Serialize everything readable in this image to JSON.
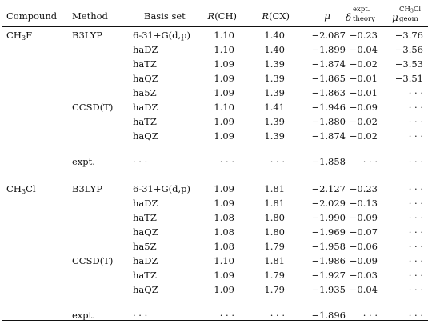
{
  "table": {
    "headers": {
      "compound": "Compound",
      "method": "Method",
      "basis": "Basis set",
      "rch_letter": "R",
      "rch_label": "(CH)",
      "rcx_letter": "R",
      "rcx_label": "(CX)",
      "mu_symbol": "μ",
      "delta_symbol": "δ",
      "delta_sup": "expt.",
      "delta_sub": "theory",
      "mugeom_symbol": "μ",
      "mugeom_sup": "CH3Cl",
      "mugeom_sub": "geom"
    },
    "rows": [
      {
        "compound": "CH3F",
        "method": "B3LYP",
        "basis": "6-31+G(d,p)",
        "rch": "1.10",
        "rcx": "1.40",
        "mu": "−2.087",
        "delta": "−0.23",
        "geom": "−3.76"
      },
      {
        "compound": "",
        "method": "",
        "basis": "haDZ",
        "rch": "1.10",
        "rcx": "1.40",
        "mu": "−1.899",
        "delta": "−0.04",
        "geom": "−3.56"
      },
      {
        "compound": "",
        "method": "",
        "basis": "haTZ",
        "rch": "1.09",
        "rcx": "1.39",
        "mu": "−1.874",
        "delta": "−0.02",
        "geom": "−3.53"
      },
      {
        "compound": "",
        "method": "",
        "basis": "haQZ",
        "rch": "1.09",
        "rcx": "1.39",
        "mu": "−1.865",
        "delta": "−0.01",
        "geom": "−3.51"
      },
      {
        "compound": "",
        "method": "",
        "basis": "ha5Z",
        "rch": "1.09",
        "rcx": "1.39",
        "mu": "−1.863",
        "delta": "−0.01",
        "geom": "· · ·"
      },
      {
        "compound": "",
        "method": "CCSD(T)",
        "basis": "haDZ",
        "rch": "1.10",
        "rcx": "1.41",
        "mu": "−1.946",
        "delta": "−0.09",
        "geom": "· · ·"
      },
      {
        "compound": "",
        "method": "",
        "basis": "haTZ",
        "rch": "1.09",
        "rcx": "1.39",
        "mu": "−1.880",
        "delta": "−0.02",
        "geom": "· · ·"
      },
      {
        "compound": "",
        "method": "",
        "basis": "haQZ",
        "rch": "1.09",
        "rcx": "1.39",
        "mu": "−1.874",
        "delta": "−0.02",
        "geom": "· · ·"
      },
      {
        "compound": "",
        "method": "expt.",
        "basis": "· · ·",
        "rch": "· · ·",
        "rcx": "· · ·",
        "mu": "−1.858",
        "delta": "· · ·",
        "geom": "· · ·"
      },
      {
        "compound": "CH3Cl",
        "method": "B3LYP",
        "basis": "6-31+G(d,p)",
        "rch": "1.09",
        "rcx": "1.81",
        "mu": "−2.127",
        "delta": "−0.23",
        "geom": "· · ·"
      },
      {
        "compound": "",
        "method": "",
        "basis": "haDZ",
        "rch": "1.09",
        "rcx": "1.81",
        "mu": "−2.029",
        "delta": "−0.13",
        "geom": "· · ·"
      },
      {
        "compound": "",
        "method": "",
        "basis": "haTZ",
        "rch": "1.08",
        "rcx": "1.80",
        "mu": "−1.990",
        "delta": "−0.09",
        "geom": "· · ·"
      },
      {
        "compound": "",
        "method": "",
        "basis": "haQZ",
        "rch": "1.08",
        "rcx": "1.80",
        "mu": "−1.969",
        "delta": "−0.07",
        "geom": "· · ·"
      },
      {
        "compound": "",
        "method": "",
        "basis": "ha5Z",
        "rch": "1.08",
        "rcx": "1.79",
        "mu": "−1.958",
        "delta": "−0.06",
        "geom": "· · ·"
      },
      {
        "compound": "",
        "method": "CCSD(T)",
        "basis": "haDZ",
        "rch": "1.10",
        "rcx": "1.81",
        "mu": "−1.986",
        "delta": "−0.09",
        "geom": "· · ·"
      },
      {
        "compound": "",
        "method": "",
        "basis": "haTZ",
        "rch": "1.09",
        "rcx": "1.79",
        "mu": "−1.927",
        "delta": "−0.03",
        "geom": "· · ·"
      },
      {
        "compound": "",
        "method": "",
        "basis": "haQZ",
        "rch": "1.09",
        "rcx": "1.79",
        "mu": "−1.935",
        "delta": "−0.04",
        "geom": "· · ·"
      },
      {
        "compound": "",
        "method": "expt.",
        "basis": "· · ·",
        "rch": "· · ·",
        "rcx": "· · ·",
        "mu": "−1.896",
        "delta": "· · ·",
        "geom": "· · ·"
      }
    ]
  }
}
